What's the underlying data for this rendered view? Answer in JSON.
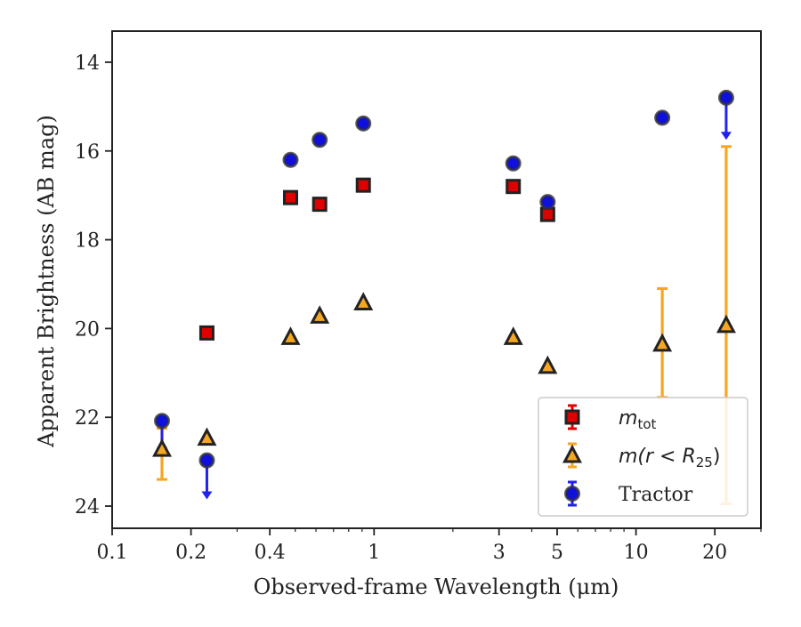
{
  "chart_data": {
    "type": "scatter",
    "xlabel": "Observed-frame Wavelength (μm)",
    "ylabel": "Apparent Brightness (AB mag)",
    "xscale": "log",
    "xlim": [
      0.1,
      30
    ],
    "ylim": [
      24.5,
      13.3
    ],
    "y_inverted": true,
    "x_ticks": [
      0.1,
      0.2,
      0.4,
      1,
      3,
      5,
      10,
      20
    ],
    "x_tick_labels": [
      "0.1",
      "0.2",
      "0.4",
      "1",
      "3",
      "5",
      "10",
      "20"
    ],
    "y_ticks": [
      14,
      16,
      18,
      20,
      22,
      24
    ],
    "y_tick_labels": [
      "14",
      "16",
      "18",
      "20",
      "22",
      "24"
    ],
    "grid": false,
    "legend_placement": "lower-right",
    "series": [
      {
        "name": "m_tot",
        "legend_main": "m",
        "legend_sub": "tot",
        "marker": "square",
        "color": "#e00000",
        "edge_color": "#222222",
        "errorbar_color": "#e00000",
        "points": [
          {
            "x": 0.23,
            "y": 20.1
          },
          {
            "x": 0.48,
            "y": 17.05
          },
          {
            "x": 0.62,
            "y": 17.2
          },
          {
            "x": 0.91,
            "y": 16.77
          },
          {
            "x": 3.4,
            "y": 16.8
          },
          {
            "x": 4.6,
            "y": 17.43
          }
        ]
      },
      {
        "name": "m(r<R25)",
        "legend_main": "m(r < R",
        "legend_sub": "25",
        "legend_tail": ")",
        "marker": "triangle",
        "color": "#f5a623",
        "edge_color": "#222222",
        "errorbar_color": "#f5a623",
        "points": [
          {
            "x": 0.155,
            "y": 22.72,
            "yerr_low": 22.25,
            "yerr_high": 23.4
          },
          {
            "x": 0.23,
            "y": 22.47
          },
          {
            "x": 0.48,
            "y": 20.2
          },
          {
            "x": 0.62,
            "y": 19.72
          },
          {
            "x": 0.91,
            "y": 19.42
          },
          {
            "x": 3.4,
            "y": 20.2
          },
          {
            "x": 4.6,
            "y": 20.85
          },
          {
            "x": 12.6,
            "y": 20.35,
            "yerr_low": 19.1,
            "yerr_high": 21.55
          },
          {
            "x": 22.1,
            "y": 19.93,
            "yerr_low": 15.9,
            "yerr_high": 23.95
          }
        ]
      },
      {
        "name": "Tractor",
        "legend_main": "Tractor",
        "marker": "circle",
        "color": "#1010dd",
        "edge_color": "#333333",
        "errorbar_color": "#2222ee",
        "points": [
          {
            "x": 0.155,
            "y": 22.08,
            "upper_limit": true,
            "limit_to": 22.85
          },
          {
            "x": 0.23,
            "y": 22.97,
            "upper_limit": true,
            "limit_to": 23.85
          },
          {
            "x": 0.48,
            "y": 16.2
          },
          {
            "x": 0.62,
            "y": 15.75
          },
          {
            "x": 0.91,
            "y": 15.38
          },
          {
            "x": 3.4,
            "y": 16.28
          },
          {
            "x": 4.6,
            "y": 17.15
          },
          {
            "x": 12.6,
            "y": 15.25
          },
          {
            "x": 22.1,
            "y": 14.8,
            "upper_limit": true,
            "limit_to": 15.75
          }
        ]
      }
    ]
  }
}
